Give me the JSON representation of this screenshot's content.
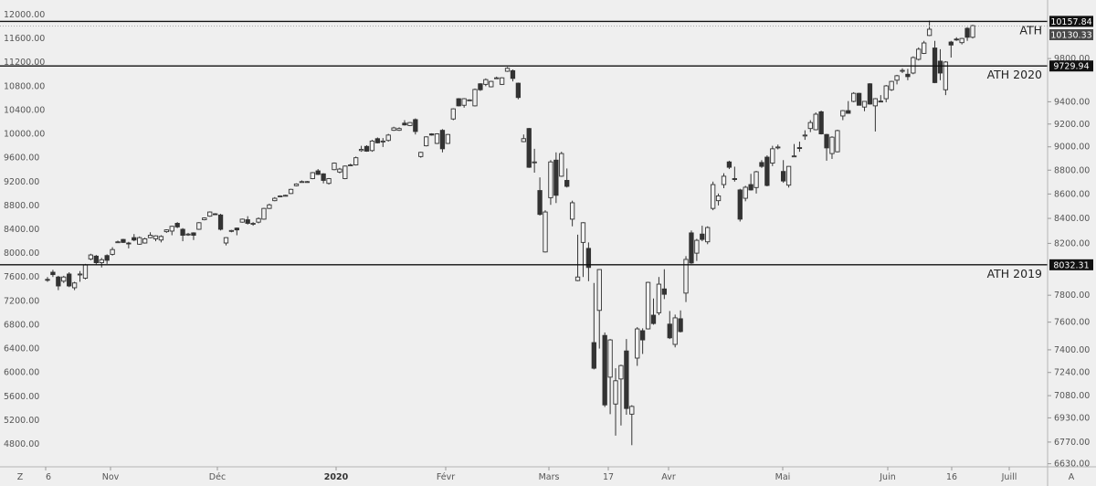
{
  "chart_data": {
    "type": "candlestick",
    "left_axis": {
      "scale": "linear",
      "range": [
        4800,
        12000
      ],
      "ticks": [
        "12000.00",
        "11600.00",
        "11200.00",
        "10800.00",
        "10400.00",
        "10000.00",
        "9600.00",
        "9200.00",
        "8800.00",
        "8400.00",
        "8000.00",
        "7600.00",
        "7200.00",
        "6800.00",
        "6400.00",
        "6000.00",
        "5600.00",
        "5200.00",
        "4800.00"
      ]
    },
    "right_axis": {
      "scale": "log",
      "ticks": [
        "9800.00",
        "9400.00",
        "9200.00",
        "9000.00",
        "8800.00",
        "8600.00",
        "8400.00",
        "8200.00",
        "7800.00",
        "7600.00",
        "7400.00",
        "7240.00",
        "7080.00",
        "6930.00",
        "6770.00",
        "6630.00"
      ]
    },
    "x_labels": [
      {
        "text": "6",
        "bold": false
      },
      {
        "text": "Nov",
        "bold": false
      },
      {
        "text": "Déc",
        "bold": false
      },
      {
        "text": "2020",
        "bold": true
      },
      {
        "text": "Févr",
        "bold": false
      },
      {
        "text": "Mars",
        "bold": false
      },
      {
        "text": "17",
        "bold": false
      },
      {
        "text": "Avr",
        "bold": false
      },
      {
        "text": "Mai",
        "bold": false
      },
      {
        "text": "Juin",
        "bold": false
      },
      {
        "text": "16",
        "bold": false
      },
      {
        "text": "Juill",
        "bold": false
      }
    ],
    "levels": [
      {
        "label": "ATH",
        "value": 10157.84,
        "tag": "10157.84"
      },
      {
        "label": "ATH 2020",
        "value": 9729.94,
        "tag": "9729.94"
      },
      {
        "label": "ATH 2019",
        "value": 8032.31,
        "tag": "8032.31"
      }
    ],
    "last_price": {
      "value": 10130.33,
      "tag": "10130.33"
    },
    "colors": {
      "up_fill": "#f2f2f2",
      "down_fill": "#333333",
      "outline": "#333333",
      "background": "#efefef",
      "level_line": "#111111"
    },
    "candles_ohlc": [
      [
        7560,
        7600,
        7520,
        7545
      ],
      [
        7680,
        7720,
        7600,
        7640
      ],
      [
        7600,
        7620,
        7380,
        7450
      ],
      [
        7530,
        7620,
        7500,
        7600
      ],
      [
        7650,
        7680,
        7430,
        7450
      ],
      [
        7420,
        7520,
        7380,
        7500
      ],
      [
        7640,
        7700,
        7520,
        7650
      ],
      [
        7580,
        7820,
        7560,
        7800
      ],
      [
        7900,
        7990,
        7880,
        7970
      ],
      [
        7950,
        7970,
        7810,
        7840
      ],
      [
        7840,
        7920,
        7760,
        7890
      ],
      [
        7960,
        7980,
        7820,
        7880
      ],
      [
        7980,
        8100,
        7960,
        8060
      ],
      [
        8180,
        8210,
        8170,
        8190
      ],
      [
        8230,
        8240,
        8170,
        8180
      ],
      [
        8170,
        8190,
        8080,
        8160
      ],
      [
        8260,
        8320,
        8200,
        8220
      ],
      [
        8150,
        8280,
        8140,
        8260
      ],
      [
        8170,
        8260,
        8160,
        8240
      ],
      [
        8260,
        8350,
        8250,
        8300
      ],
      [
        8240,
        8300,
        8200,
        8290
      ],
      [
        8220,
        8300,
        8180,
        8280
      ],
      [
        8360,
        8400,
        8340,
        8390
      ],
      [
        8370,
        8460,
        8300,
        8450
      ],
      [
        8500,
        8520,
        8420,
        8440
      ],
      [
        8400,
        8420,
        8200,
        8300
      ],
      [
        8310,
        8340,
        8290,
        8320
      ],
      [
        8340,
        8350,
        8220,
        8300
      ],
      [
        8400,
        8520,
        8390,
        8510
      ],
      [
        8560,
        8600,
        8550,
        8590
      ],
      [
        8620,
        8700,
        8610,
        8690
      ],
      [
        8660,
        8670,
        8640,
        8650
      ],
      [
        8640,
        8660,
        8380,
        8400
      ],
      [
        8170,
        8270,
        8130,
        8260
      ],
      [
        8370,
        8390,
        8350,
        8380
      ],
      [
        8420,
        8430,
        8300,
        8390
      ],
      [
        8520,
        8580,
        8510,
        8570
      ],
      [
        8560,
        8620,
        8480,
        8500
      ],
      [
        8500,
        8520,
        8460,
        8500
      ],
      [
        8520,
        8600,
        8500,
        8580
      ],
      [
        8570,
        8760,
        8560,
        8750
      ],
      [
        8750,
        8830,
        8740,
        8810
      ],
      [
        8880,
        8940,
        8870,
        8920
      ],
      [
        8950,
        8970,
        8940,
        8960
      ],
      [
        8960,
        8980,
        8950,
        8970
      ],
      [
        9000,
        9080,
        8990,
        9070
      ],
      [
        9130,
        9170,
        9120,
        9160
      ],
      [
        9200,
        9220,
        9190,
        9200
      ],
      [
        9190,
        9210,
        9180,
        9200
      ],
      [
        9250,
        9360,
        9240,
        9350
      ],
      [
        9380,
        9410,
        9310,
        9320
      ],
      [
        9330,
        9340,
        9170,
        9220
      ],
      [
        9170,
        9260,
        9150,
        9250
      ],
      [
        9400,
        9520,
        9390,
        9510
      ],
      [
        9360,
        9430,
        9340,
        9410
      ],
      [
        9250,
        9470,
        9240,
        9460
      ],
      [
        9470,
        9500,
        9460,
        9480
      ],
      [
        9480,
        9620,
        9470,
        9600
      ],
      [
        9720,
        9800,
        9700,
        9740
      ],
      [
        9790,
        9810,
        9700,
        9710
      ],
      [
        9720,
        9900,
        9700,
        9880
      ],
      [
        9920,
        9940,
        9840,
        9850
      ],
      [
        9870,
        9930,
        9780,
        9880
      ],
      [
        9890,
        10000,
        9870,
        9980
      ],
      [
        10060,
        10120,
        10050,
        10100
      ],
      [
        10060,
        10110,
        10050,
        10090
      ],
      [
        10180,
        10230,
        10140,
        10150
      ],
      [
        10140,
        10200,
        10130,
        10190
      ],
      [
        10240,
        10260,
        9990,
        10040
      ],
      [
        9620,
        9700,
        9600,
        9690
      ],
      [
        9800,
        9960,
        9790,
        9950
      ],
      [
        10000,
        10010,
        9970,
        9980
      ],
      [
        9840,
        10010,
        9830,
        10000
      ],
      [
        10060,
        10080,
        9690,
        9750
      ],
      [
        9840,
        10000,
        9830,
        9990
      ],
      [
        10250,
        10430,
        10230,
        10420
      ],
      [
        10590,
        10600,
        10460,
        10470
      ],
      [
        10480,
        10600,
        10440,
        10590
      ],
      [
        10570,
        10580,
        10560,
        10570
      ],
      [
        10470,
        10760,
        10460,
        10745
      ],
      [
        10840,
        10850,
        10720,
        10740
      ],
      [
        10830,
        10930,
        10800,
        10910
      ],
      [
        10790,
        10890,
        10780,
        10880
      ],
      [
        10930,
        10960,
        10920,
        10940
      ],
      [
        10830,
        10950,
        10820,
        10940
      ],
      [
        11050,
        11120,
        11040,
        11100
      ],
      [
        11060,
        11080,
        10880,
        10930
      ],
      [
        10850,
        10860,
        10580,
        10610
      ],
      [
        9870,
        9990,
        9860,
        9920
      ],
      [
        10090,
        10100,
        9430,
        9440
      ],
      [
        9530,
        9750,
        9350,
        9530
      ],
      [
        9050,
        9270,
        8630,
        8650
      ],
      [
        8020,
        8720,
        8010,
        8690
      ],
      [
        8930,
        9560,
        8810,
        9530
      ],
      [
        9560,
        9690,
        8840,
        8970
      ],
      [
        9290,
        9700,
        9280,
        9670
      ],
      [
        9220,
        9420,
        9100,
        9120
      ],
      [
        8570,
        8880,
        8450,
        8845
      ],
      [
        7540,
        8310,
        7530,
        7600
      ],
      [
        8180,
        8520,
        7600,
        8510
      ],
      [
        8080,
        8180,
        7530,
        7760
      ],
      [
        6500,
        7500,
        6050,
        6070
      ],
      [
        7040,
        7730,
        6400,
        7725
      ],
      [
        6620,
        6670,
        5420,
        5455
      ],
      [
        5920,
        6560,
        5300,
        6545
      ],
      [
        5470,
        6070,
        4940,
        5860
      ],
      [
        5890,
        6130,
        5110,
        6115
      ],
      [
        6360,
        6560,
        5290,
        5395
      ],
      [
        5300,
        5450,
        4780,
        5430
      ],
      [
        6240,
        6760,
        6110,
        6730
      ],
      [
        6700,
        6740,
        6310,
        6545
      ],
      [
        6730,
        7520,
        6720,
        7510
      ],
      [
        6960,
        7240,
        6800,
        6820
      ],
      [
        7000,
        7600,
        6960,
        7480
      ],
      [
        7400,
        7730,
        7230,
        7310
      ],
      [
        6810,
        7030,
        6560,
        6580
      ],
      [
        6470,
        6970,
        6420,
        6915
      ],
      [
        6900,
        7040,
        6670,
        6685
      ],
      [
        7330,
        7950,
        7180,
        7895
      ],
      [
        8340,
        8380,
        7820,
        7835
      ],
      [
        8000,
        8240,
        7870,
        8215
      ],
      [
        8320,
        8460,
        8200,
        8230
      ],
      [
        8190,
        8450,
        8150,
        8430
      ],
      [
        8750,
        9200,
        8720,
        9150
      ],
      [
        8880,
        9000,
        8800,
        8960
      ],
      [
        9150,
        9340,
        9090,
        9290
      ],
      [
        9530,
        9550,
        9410,
        9440
      ],
      [
        9250,
        9450,
        9200,
        9240
      ],
      [
        9060,
        9080,
        8530,
        8570
      ],
      [
        8920,
        9130,
        8870,
        9105
      ],
      [
        9150,
        9330,
        9050,
        9060
      ],
      [
        9100,
        9380,
        9000,
        9365
      ],
      [
        9520,
        9560,
        9430,
        9455
      ],
      [
        9610,
        9640,
        9120,
        9135
      ],
      [
        9510,
        9800,
        9460,
        9750
      ],
      [
        9780,
        9820,
        9740,
        9780
      ],
      [
        9370,
        9560,
        9180,
        9210
      ],
      [
        9140,
        9460,
        9100,
        9455
      ],
      [
        9620,
        9830,
        9610,
        9630
      ],
      [
        9770,
        9870,
        9700,
        9765
      ],
      [
        9975,
        10060,
        9900,
        9980
      ],
      [
        10090,
        10230,
        10030,
        10190
      ],
      [
        10070,
        10360,
        10060,
        10330
      ],
      [
        10370,
        10390,
        9990,
        10000
      ],
      [
        9990,
        10000,
        9550,
        9765
      ],
      [
        9670,
        9960,
        9580,
        9945
      ],
      [
        9700,
        10070,
        9690,
        10055
      ],
      [
        10300,
        10400,
        10230,
        10390
      ],
      [
        10390,
        10550,
        10340,
        10345
      ],
      [
        10545,
        10700,
        10530,
        10680
      ],
      [
        10680,
        10690,
        10480,
        10480
      ],
      [
        10450,
        10550,
        10380,
        10545
      ],
      [
        10840,
        10850,
        10490,
        10500
      ],
      [
        10470,
        10600,
        10040,
        10590
      ],
      [
        10550,
        10650,
        10530,
        10545
      ],
      [
        10590,
        10820,
        10530,
        10805
      ],
      [
        10740,
        10890,
        10720,
        10880
      ],
      [
        10900,
        10990,
        10830,
        10975
      ],
      [
        11060,
        11100,
        11020,
        11065
      ],
      [
        11000,
        11090,
        10900,
        10960
      ],
      [
        11020,
        11300,
        11000,
        11280
      ],
      [
        11250,
        11450,
        11230,
        11420
      ],
      [
        11350,
        11560,
        11340,
        11525
      ],
      [
        11650,
        11900,
        11640,
        11755
      ],
      [
        11440,
        11560,
        10850,
        10860
      ],
      [
        11220,
        11420,
        10900,
        11020
      ],
      [
        10740,
        11220,
        10650,
        11205
      ],
      [
        11540,
        11560,
        11280,
        11490
      ],
      [
        11590,
        11620,
        11560,
        11585
      ],
      [
        11530,
        11610,
        11500,
        11600
      ],
      [
        11770,
        11790,
        11560,
        11620
      ],
      [
        11620,
        11830,
        11600,
        11815
      ]
    ]
  },
  "toolbar": {
    "zoom_button": "Z",
    "auto_button": "A"
  }
}
